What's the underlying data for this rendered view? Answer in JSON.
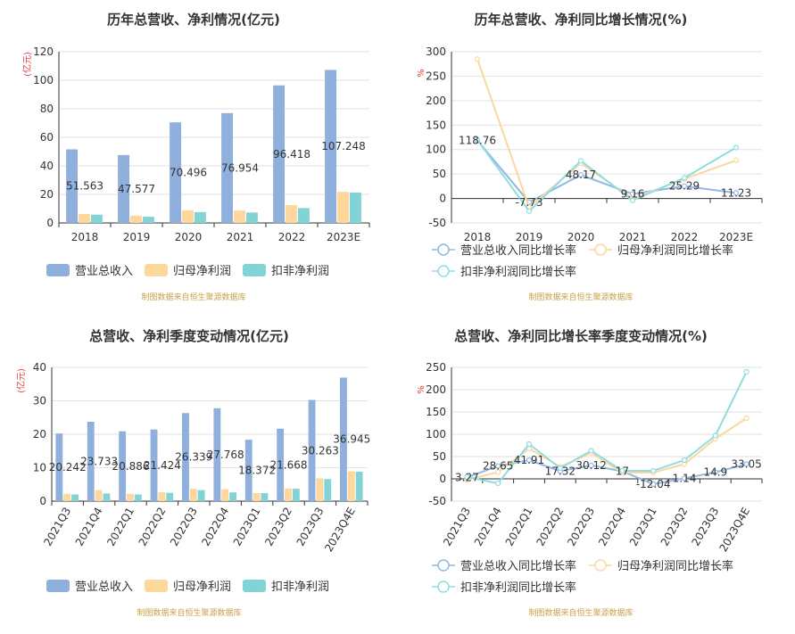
{
  "colors": {
    "blue": "#8fb0dd",
    "orange": "#fdd79c",
    "teal": "#82d3d6",
    "lineBlue": "#92b8e4",
    "lineOrange": "#fbd7a0",
    "lineTeal": "#8fdde0"
  },
  "source": "制图数据来自恒生聚源数据库",
  "chart_data": [
    {
      "id": "annual-revenue-profit",
      "type": "bar",
      "title": "历年总营收、净利情况(亿元)",
      "unit": "(亿元)",
      "categories": [
        "2018",
        "2019",
        "2020",
        "2021",
        "2022",
        "2023E"
      ],
      "yticks": [
        0,
        20,
        40,
        60,
        80,
        100,
        120
      ],
      "ylim": [
        0,
        120
      ],
      "series": [
        {
          "name": "营业总收入",
          "values": [
            51.563,
            47.577,
            70.496,
            76.954,
            96.418,
            107.248
          ],
          "labels": [
            "51.563",
            "47.577",
            "70.496",
            "76.954",
            "96.418",
            "107.248"
          ]
        },
        {
          "name": "归母净利润",
          "values": [
            6.2,
            5.1,
            8.9,
            8.7,
            12.5,
            21.8
          ]
        },
        {
          "name": "扣非净利润",
          "values": [
            5.8,
            4.3,
            7.6,
            7.3,
            10.4,
            21.3
          ]
        }
      ]
    },
    {
      "id": "annual-growth",
      "type": "line",
      "title": "历年总营收、净利同比增长情况(%)",
      "unit": "%",
      "categories": [
        "2018",
        "2019",
        "2020",
        "2021",
        "2022",
        "2023E"
      ],
      "yticks": [
        -50,
        0,
        50,
        100,
        150,
        200,
        250,
        300
      ],
      "ylim": [
        -50,
        300
      ],
      "series": [
        {
          "name": "营业总收入同比增长率",
          "values": [
            118.76,
            -7.73,
            48.17,
            9.16,
            25.29,
            11.23
          ],
          "labels": [
            "118.76",
            "-7.73",
            "48.17",
            "9.16",
            "25.29",
            "11.23"
          ]
        },
        {
          "name": "归母净利润同比增长率",
          "values": [
            285,
            -18,
            72,
            0,
            40,
            78
          ]
        },
        {
          "name": "扣非净利润同比增长率",
          "values": [
            120,
            -26,
            77,
            -4,
            42,
            104
          ]
        }
      ]
    },
    {
      "id": "quarterly-revenue-profit",
      "type": "bar",
      "title": "总营收、净利季度变动情况(亿元)",
      "unit": "(亿元)",
      "categories": [
        "2021Q3",
        "2021Q4",
        "2022Q1",
        "2022Q2",
        "2022Q3",
        "2022Q4",
        "2023Q1",
        "2023Q2",
        "2023Q3",
        "2023Q4E"
      ],
      "yticks": [
        0,
        10,
        20,
        30,
        40
      ],
      "ylim": [
        0,
        40
      ],
      "series": [
        {
          "name": "营业总收入",
          "values": [
            20.242,
            23.733,
            20.886,
            21.424,
            26.339,
            27.768,
            18.372,
            21.668,
            30.263,
            36.945
          ],
          "labels": [
            "20.242",
            "23.733",
            "20.886",
            "21.424",
            "26.339",
            "27.768",
            "18.372",
            "21.668",
            "30.263",
            "36.945"
          ]
        },
        {
          "name": "归母净利润",
          "values": [
            2.2,
            3.3,
            2.2,
            2.7,
            3.7,
            3.6,
            2.4,
            3.8,
            6.8,
            8.9
          ]
        },
        {
          "name": "扣非净利润",
          "values": [
            2.0,
            2.3,
            2.0,
            2.5,
            3.3,
            2.6,
            2.4,
            3.7,
            6.6,
            8.8
          ]
        }
      ]
    },
    {
      "id": "quarterly-growth",
      "type": "line",
      "title": "总营收、净利同比增长率季度变动情况(%)",
      "unit": "%",
      "categories": [
        "2021Q3",
        "2021Q4",
        "2022Q1",
        "2022Q2",
        "2022Q3",
        "2022Q4",
        "2023Q1",
        "2023Q2",
        "2023Q3",
        "2023Q4E"
      ],
      "yticks": [
        -50,
        0,
        50,
        100,
        150,
        200,
        250
      ],
      "ylim": [
        -50,
        250
      ],
      "series": [
        {
          "name": "营业总收入同比增长率",
          "values": [
            3.27,
            28.65,
            41.91,
            17.32,
            30.12,
            17,
            -12.04,
            1.14,
            14.9,
            33.05
          ],
          "labels": [
            "3.27",
            "28.65",
            "41.91",
            "17.32",
            "30.12",
            "17",
            "-12.04",
            "1.14",
            "14.9",
            "33.05"
          ]
        },
        {
          "name": "归母净利润同比增长率",
          "values": [
            -2,
            15,
            68,
            27,
            58,
            14,
            14,
            33,
            90,
            136
          ]
        },
        {
          "name": "扣非净利润同比增长率",
          "values": [
            4,
            -10,
            78,
            24,
            63,
            18,
            18,
            42,
            97,
            240
          ]
        }
      ]
    }
  ]
}
